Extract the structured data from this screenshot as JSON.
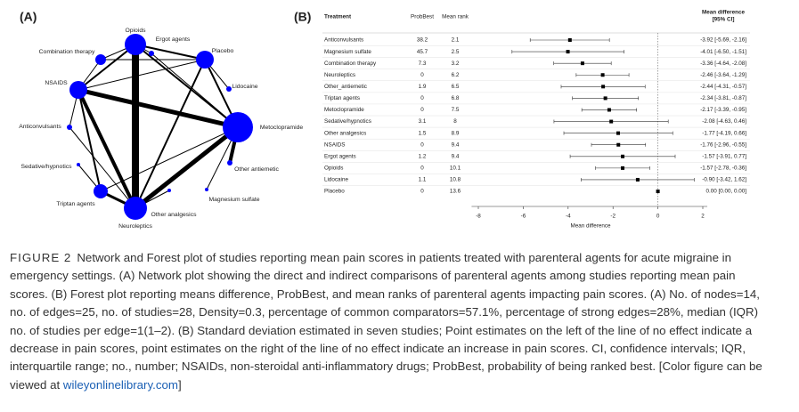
{
  "chart_data": [
    {
      "type": "network",
      "panel_label": "(A)",
      "nodes": [
        "Opioids",
        "Ergot agents",
        "Placebo",
        "Combination therapy",
        "NSAIDS",
        "Lidocaine",
        "Anticonvulsants",
        "Metoclopramide",
        "Sedative/hypnotics",
        "Other antiemetic",
        "Triptan agents",
        "Neuroleptics",
        "Other analgesics",
        "Magnesium sulfate"
      ],
      "node_color": "#0000ff",
      "edge_color": "#000000",
      "edges": [
        [
          0,
          11,
          8
        ],
        [
          4,
          7,
          5
        ],
        [
          11,
          7,
          5
        ],
        [
          4,
          11,
          4
        ],
        [
          7,
          9,
          4
        ],
        [
          0,
          4,
          2
        ],
        [
          0,
          2,
          2
        ],
        [
          0,
          7,
          2
        ],
        [
          2,
          7,
          2
        ],
        [
          3,
          2,
          1
        ],
        [
          3,
          4,
          1
        ],
        [
          0,
          3,
          1
        ],
        [
          4,
          2,
          1
        ],
        [
          2,
          11,
          2
        ],
        [
          2,
          5,
          1
        ],
        [
          4,
          10,
          2
        ],
        [
          10,
          11,
          3
        ],
        [
          7,
          10,
          1
        ],
        [
          6,
          4,
          1
        ],
        [
          6,
          11,
          1
        ],
        [
          1,
          7,
          1
        ],
        [
          0,
          1,
          1
        ],
        [
          8,
          10,
          1
        ],
        [
          7,
          13,
          1
        ],
        [
          11,
          12,
          1
        ]
      ]
    },
    {
      "type": "forest",
      "panel_label": "(B)",
      "headers": {
        "treatment": "Treatment",
        "probbest": "ProbBest",
        "meanrank": "Mean rank",
        "ci": [
          "Mean difference",
          "[95% CI]"
        ]
      },
      "categories": [
        "Anticonvulsants",
        "Magnesium sulfate",
        "Combination therapy",
        "Neuroleptics",
        "Other_antiemetic",
        "Triptan agents",
        "Metoclopramide",
        "Sedative/hypnotics",
        "Other analgesics",
        "NSAIDS",
        "Ergot agents",
        "Opioids",
        "Lidocaine",
        "Placebo"
      ],
      "probbest": [
        38.2,
        45.7,
        7.3,
        0,
        1.9,
        0,
        0,
        3.1,
        1.5,
        0,
        1.2,
        0,
        1.1,
        0
      ],
      "meanrank": [
        2.1,
        2.5,
        3.2,
        6.2,
        6.5,
        6.8,
        7.5,
        8,
        8.9,
        9.4,
        9.4,
        10.1,
        10.8,
        13.6
      ],
      "values": [
        -3.92,
        -4.01,
        -3.36,
        -2.46,
        -2.44,
        -2.34,
        -2.17,
        -2.08,
        -1.77,
        -1.76,
        -1.57,
        -1.57,
        -0.9,
        0
      ],
      "ci_low": [
        -5.69,
        -6.5,
        -4.64,
        -3.64,
        -4.31,
        -3.81,
        -3.39,
        -4.63,
        -4.19,
        -2.96,
        -3.91,
        -2.78,
        -3.42,
        0
      ],
      "ci_high": [
        -2.16,
        -1.51,
        -2.08,
        -1.29,
        -0.57,
        -0.87,
        -0.95,
        0.46,
        0.66,
        -0.55,
        0.77,
        -0.36,
        1.62,
        0
      ],
      "value_labels": [
        "-3.92 [-5.69, -2.16]",
        "-4.01 [-6.50, -1.51]",
        "-3.36 [-4.64, -2.08]",
        "-2.46 [-3.64, -1.29]",
        "-2.44 [-4.31, -0.57]",
        "-2.34 [-3.81, -0.87]",
        "-2.17 [-3.39, -0.95]",
        "-2.08 [-4.63, 0.46]",
        "-1.77 [-4.19, 0.66]",
        "-1.76 [-2.96, -0.55]",
        "-1.57 [-3.91, 0.77]",
        "-1.57 [-2.78, -0.36]",
        "-0.90 [-3.42, 1.62]",
        "0.00 [0.00, 0.00]"
      ],
      "xlabel": "Mean difference",
      "xlim": [
        -8.3,
        2.2
      ],
      "xticks": [
        -8,
        -6,
        -4,
        -2,
        0,
        2
      ],
      "color": "#000000"
    }
  ],
  "caption": {
    "label": "FIGURE 2",
    "text": "Network and Forest plot of studies reporting mean pain scores in patients treated with parenteral agents for acute migraine in emergency settings. (A) Network plot showing the direct and indirect comparisons of parenteral agents among studies reporting mean pain scores. (B) Forest plot reporting means difference, ProbBest, and mean ranks of parenteral agents impacting pain scores. (A) No. of nodes=14, no. of edges=25, no. of studies=28, Density=0.3, percentage of common comparators=57.1%, percentage of strong edges=28%, median (IQR) no. of studies per edge=1(1–2). (B) Standard deviation estimated in seven studies; Point estimates on the left of the line of no effect indicate a decrease in pain scores, point estimates on the right of the line of no effect indicate an increase in pain scores. CI, confidence intervals; IQR, interquartile range; no., number; NSAIDs, non-steroidal anti-inflammatory drugs; ProbBest, probability of being ranked best. [Color figure can be viewed at ",
    "link": "wileyonlinelibrary.com",
    "end": "]"
  }
}
